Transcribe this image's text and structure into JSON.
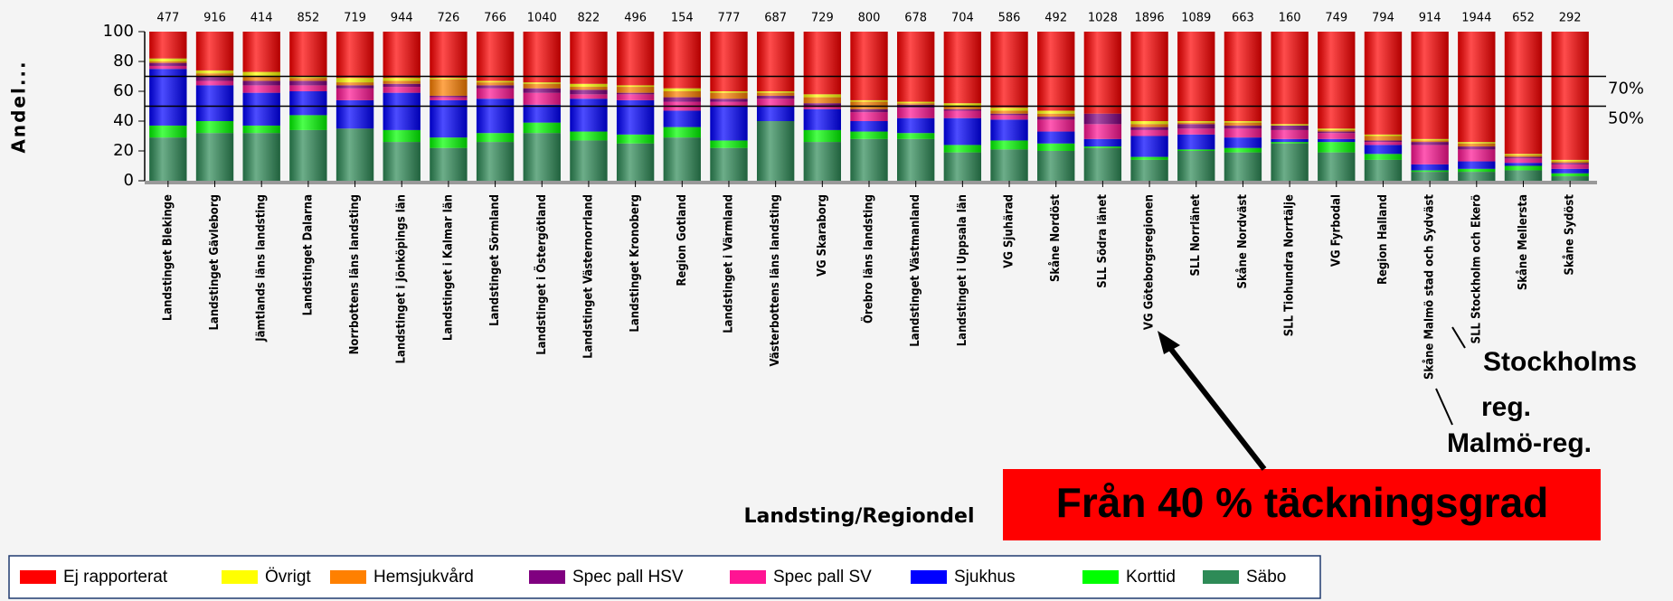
{
  "chart_data": {
    "type": "stacked_bar",
    "y_label": "Andel...",
    "x_label": "Landsting/Regiondel",
    "ylim": [
      0,
      100
    ],
    "yticks": [
      0,
      20,
      40,
      60,
      80,
      100
    ],
    "categories": [
      "Landstinget Blekinge",
      "Landstinget Gävleborg",
      "Jämtlands läns landsting",
      "Landstinget Dalarna",
      "Norrbottens läns landsting",
      "Landstinget i Jönköpings län",
      "Landstinget i Kalmar län",
      "Landstinget Sörmland",
      "Landstinget i Östergötland",
      "Landstinget Västernorrland",
      "Landstinget Kronoberg",
      "Region Gotland",
      "Landstinget i Värmland",
      "Västerbottens läns landsting",
      "VG Skaraborg",
      "Örebro läns landsting",
      "Landstinget Västmanland",
      "Landstinget i Uppsala län",
      "VG Sjuhärad",
      "Skåne Nordöst",
      "SLL Södra länet",
      "VG Göteborgsregionen",
      "SLL Norrlänet",
      "Skåne Nordväst",
      "SLL Tiohundra Norrtälje",
      "VG Fyrbodal",
      "Region Halland",
      "Skåne Malmö stad och Sydväst",
      "SLL Stockholm och Ekerö",
      "Skåne Mellersta",
      "Skåne Sydöst"
    ],
    "counts": [
      477,
      916,
      414,
      852,
      719,
      944,
      726,
      766,
      1040,
      822,
      496,
      154,
      777,
      687,
      729,
      800,
      678,
      704,
      586,
      492,
      1028,
      1896,
      1089,
      663,
      160,
      749,
      794,
      914,
      1944,
      652,
      292
    ],
    "series": [
      {
        "name": "Ej rapporterat",
        "color": "#ff0000",
        "values": [
          18,
          26,
          27,
          30,
          31,
          31,
          31,
          33,
          34,
          35,
          36,
          38,
          40,
          40,
          42,
          46,
          47,
          48,
          51,
          53,
          55,
          60,
          60,
          60,
          62,
          65,
          69,
          72,
          74,
          82,
          86
        ]
      },
      {
        "name": "Övrigt",
        "color": "#ffff00",
        "values": [
          2,
          2,
          3,
          1,
          3,
          2,
          1,
          1,
          1,
          2,
          1,
          2,
          1,
          1,
          2,
          1,
          1,
          2,
          2,
          2,
          0,
          2,
          1,
          1,
          1,
          1,
          1,
          1,
          1,
          1,
          1
        ]
      },
      {
        "name": "Hemsjukvård",
        "color": "#ff8000",
        "values": [
          1,
          2,
          3,
          2,
          2,
          2,
          11,
          2,
          3,
          2,
          4,
          4,
          4,
          2,
          4,
          5,
          1,
          2,
          2,
          2,
          0,
          2,
          1,
          2,
          0,
          1,
          3,
          1,
          2,
          1,
          1
        ]
      },
      {
        "name": "Spec pall HSV",
        "color": "#800080",
        "values": [
          2,
          3,
          3,
          3,
          2,
          2,
          1,
          2,
          3,
          3,
          1,
          3,
          2,
          2,
          2,
          2,
          2,
          1,
          1,
          2,
          7,
          2,
          3,
          2,
          3,
          1,
          1,
          2,
          2,
          1,
          1
        ]
      },
      {
        "name": "Spec pall SV",
        "color": "#ff1493",
        "values": [
          2,
          3,
          5,
          4,
          8,
          4,
          2,
          7,
          8,
          3,
          4,
          6,
          3,
          5,
          2,
          6,
          7,
          5,
          3,
          8,
          10,
          4,
          4,
          6,
          6,
          4,
          2,
          13,
          8,
          3,
          3
        ]
      },
      {
        "name": "Sjukhus",
        "color": "#0000ff",
        "values": [
          38,
          24,
          22,
          16,
          19,
          25,
          25,
          23,
          12,
          22,
          23,
          11,
          23,
          10,
          14,
          7,
          10,
          18,
          14,
          8,
          5,
          14,
          10,
          7,
          2,
          2,
          6,
          4,
          5,
          2,
          3
        ]
      },
      {
        "name": "Korttid",
        "color": "#00ff00",
        "values": [
          8,
          8,
          5,
          10,
          0,
          8,
          7,
          6,
          7,
          6,
          6,
          7,
          5,
          0,
          8,
          5,
          4,
          5,
          6,
          5,
          1,
          2,
          1,
          3,
          1,
          7,
          4,
          1,
          2,
          3,
          2
        ]
      },
      {
        "name": "Säbo",
        "color": "#2e8b57",
        "values": [
          29,
          32,
          32,
          34,
          35,
          26,
          22,
          26,
          32,
          27,
          25,
          29,
          22,
          40,
          26,
          28,
          28,
          19,
          21,
          20,
          22,
          14,
          20,
          19,
          25,
          19,
          14,
          6,
          6,
          7,
          3
        ]
      }
    ],
    "reference_lines": [
      {
        "value": 70,
        "label": "70%"
      },
      {
        "value": 50,
        "label": "50%"
      }
    ],
    "annotations": [
      "Från 40 % täckningsgrad",
      "Stockholms",
      "reg.",
      "Malmö-reg."
    ]
  }
}
